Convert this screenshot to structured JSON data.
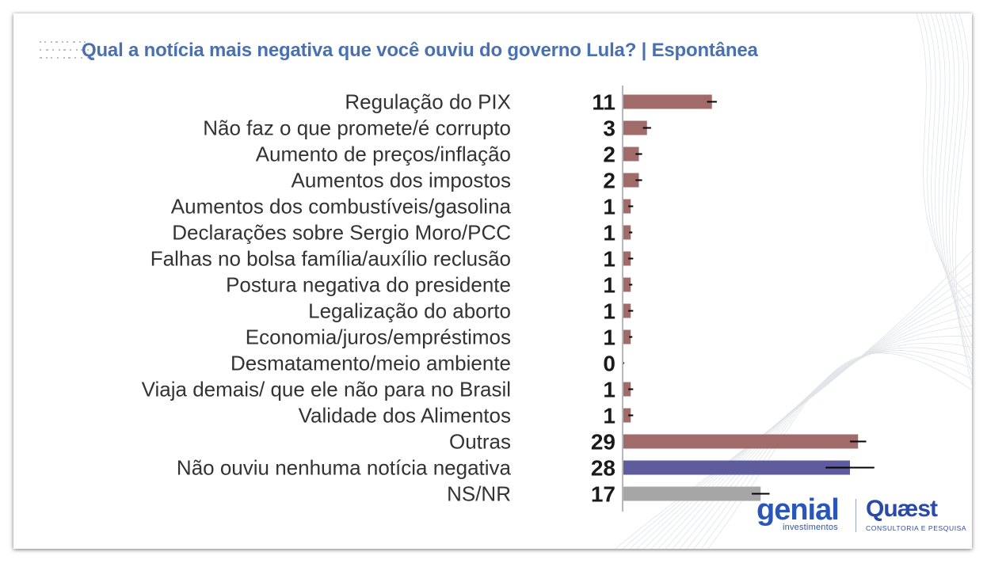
{
  "title": "Qual a notícia mais negativa que você ouviu do governo Lula? | Espontânea",
  "chart_data": {
    "type": "bar",
    "orientation": "horizontal",
    "unit": "%",
    "xlim": [
      0,
      29
    ],
    "categories": [
      "Regulação do PIX",
      "Não faz o que promete/é corrupto",
      "Aumento de preços/inflação",
      "Aumentos dos impostos",
      "Aumentos dos combustíveis/gasolina",
      "Declarações sobre Sergio Moro/PCC",
      "Falhas no bolsa família/auxílio reclusão",
      "Postura negativa do presidente",
      "Legalização do aborto",
      "Economia/juros/empréstimos",
      "Desmatamento/meio ambiente",
      "Viaja demais/ que ele não para no Brasil",
      "Validade dos Alimentos",
      "Outras",
      "Não ouviu nenhuma notícia negativa",
      "NS/NR"
    ],
    "values": [
      11,
      3,
      2,
      2,
      1,
      1,
      1,
      1,
      1,
      1,
      0,
      1,
      1,
      29,
      28,
      17
    ],
    "error": [
      0.6,
      0.5,
      0.4,
      0.4,
      0.3,
      0.2,
      0.3,
      0.2,
      0.3,
      0.2,
      0.2,
      0.3,
      0.3,
      1.0,
      3.0,
      1.1
    ],
    "bar_colors": [
      "#a06b69",
      "#a06b69",
      "#a06b69",
      "#a06b69",
      "#a06b69",
      "#a06b69",
      "#a06b69",
      "#a06b69",
      "#a06b69",
      "#a06b69",
      "#a06b69",
      "#a06b69",
      "#a06b69",
      "#a06b69",
      "#5e5c9c",
      "#a6a6a6"
    ],
    "error_bar_color": "#000000",
    "label_color": "#333333",
    "value_label_color": "#1a1a1a"
  },
  "logos": {
    "genial_main": "genial",
    "genial_sub": "investimentos",
    "quaest_main": "Quæst",
    "quaest_sub": "CONSULTORIA E PESQUISA"
  }
}
